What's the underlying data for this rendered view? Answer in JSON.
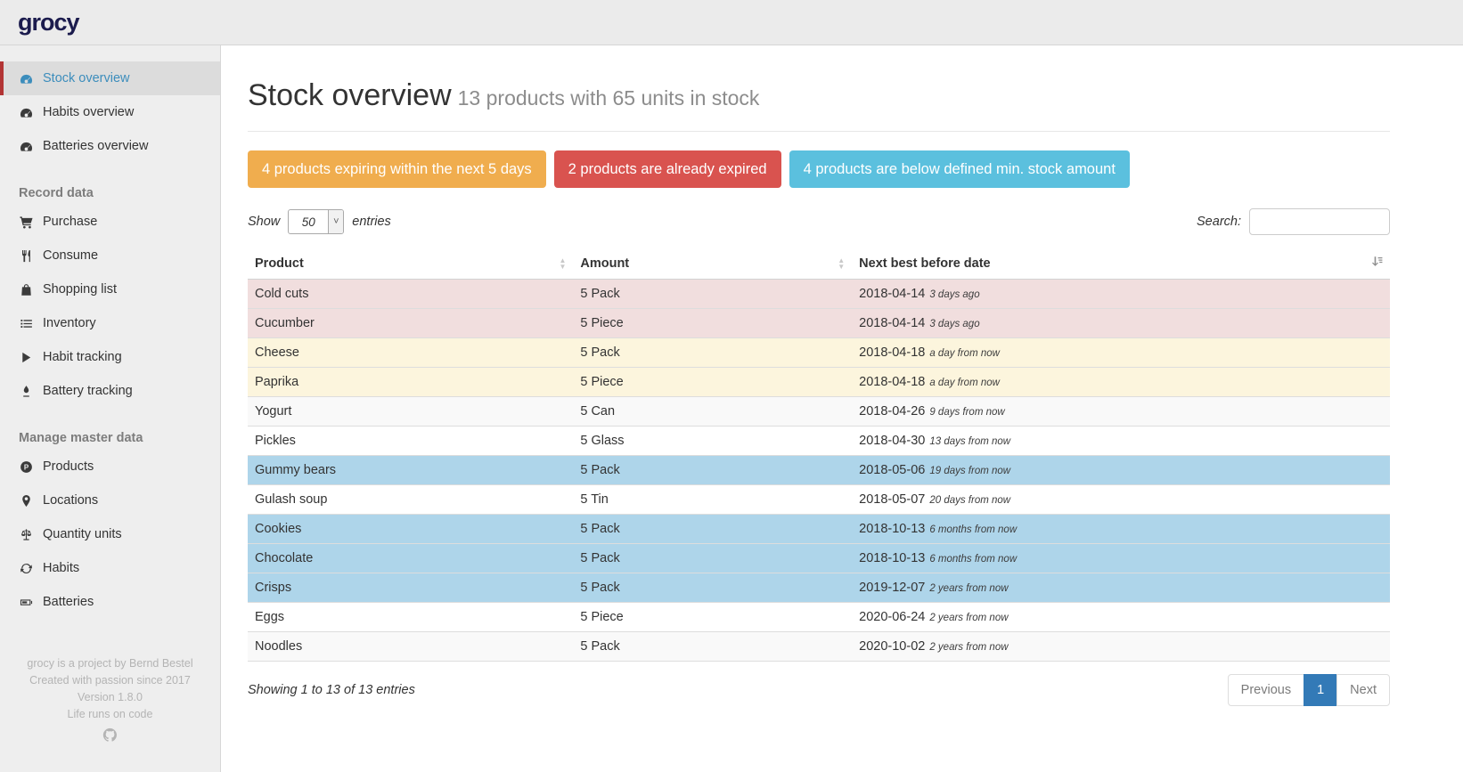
{
  "app": {
    "logo_text": "grocy"
  },
  "sidebar": {
    "groups": [
      {
        "header": null,
        "items": [
          {
            "label": "Stock overview",
            "icon": "tachometer",
            "active": true
          },
          {
            "label": "Habits overview",
            "icon": "tachometer",
            "active": false
          },
          {
            "label": "Batteries overview",
            "icon": "tachometer",
            "active": false
          }
        ]
      },
      {
        "header": "Record data",
        "items": [
          {
            "label": "Purchase",
            "icon": "shopping-cart",
            "active": false
          },
          {
            "label": "Consume",
            "icon": "utensils",
            "active": false
          },
          {
            "label": "Shopping list",
            "icon": "shopping-bag",
            "active": false
          },
          {
            "label": "Inventory",
            "icon": "list",
            "active": false
          },
          {
            "label": "Habit tracking",
            "icon": "play",
            "active": false
          },
          {
            "label": "Battery tracking",
            "icon": "pen",
            "active": false
          }
        ]
      },
      {
        "header": "Manage master data",
        "items": [
          {
            "label": "Products",
            "icon": "product-circle",
            "active": false
          },
          {
            "label": "Locations",
            "icon": "map-marker",
            "active": false
          },
          {
            "label": "Quantity units",
            "icon": "balance-scale",
            "active": false
          },
          {
            "label": "Habits",
            "icon": "refresh",
            "active": false
          },
          {
            "label": "Batteries",
            "icon": "battery",
            "active": false
          }
        ]
      }
    ],
    "footer_lines": [
      "grocy is a project by Bernd Bestel",
      "Created with passion since 2017",
      "Version 1.8.0",
      "Life runs on code"
    ]
  },
  "page": {
    "title": "Stock overview",
    "subtitle": "13 products with 65 units in stock"
  },
  "alerts": [
    {
      "label": "4 products expiring within the next 5 days",
      "color": "#f0ad4e"
    },
    {
      "label": "2 products are already expired",
      "color": "#d9534f"
    },
    {
      "label": "4 products are below defined min. stock amount",
      "color": "#5bc0de"
    }
  ],
  "controls": {
    "show_label": "Show",
    "page_size": "50",
    "entries_label": "entries",
    "search_label": "Search:",
    "search_value": ""
  },
  "table": {
    "columns": [
      "Product",
      "Amount",
      "Next best before date"
    ],
    "rows": [
      {
        "product": "Cold cuts",
        "amount": "5 Pack",
        "date": "2018-04-14",
        "relative": "3 days ago",
        "status": "expired"
      },
      {
        "product": "Cucumber",
        "amount": "5 Piece",
        "date": "2018-04-14",
        "relative": "3 days ago",
        "status": "expired"
      },
      {
        "product": "Cheese",
        "amount": "5 Pack",
        "date": "2018-04-18",
        "relative": "a day from now",
        "status": "expiring-soon"
      },
      {
        "product": "Paprika",
        "amount": "5 Piece",
        "date": "2018-04-18",
        "relative": "a day from now",
        "status": "expiring-soon"
      },
      {
        "product": "Yogurt",
        "amount": "5 Can",
        "date": "2018-04-26",
        "relative": "9 days from now",
        "status": "none"
      },
      {
        "product": "Pickles",
        "amount": "5 Glass",
        "date": "2018-04-30",
        "relative": "13 days from now",
        "status": "none"
      },
      {
        "product": "Gummy bears",
        "amount": "5 Pack",
        "date": "2018-05-06",
        "relative": "19 days from now",
        "status": "below-min-stock"
      },
      {
        "product": "Gulash soup",
        "amount": "5 Tin",
        "date": "2018-05-07",
        "relative": "20 days from now",
        "status": "none"
      },
      {
        "product": "Cookies",
        "amount": "5 Pack",
        "date": "2018-10-13",
        "relative": "6 months from now",
        "status": "below-min-stock"
      },
      {
        "product": "Chocolate",
        "amount": "5 Pack",
        "date": "2018-10-13",
        "relative": "6 months from now",
        "status": "below-min-stock"
      },
      {
        "product": "Crisps",
        "amount": "5 Pack",
        "date": "2019-12-07",
        "relative": "2 years from now",
        "status": "below-min-stock"
      },
      {
        "product": "Eggs",
        "amount": "5 Piece",
        "date": "2020-06-24",
        "relative": "2 years from now",
        "status": "none"
      },
      {
        "product": "Noodles",
        "amount": "5 Pack",
        "date": "2020-10-02",
        "relative": "2 years from now",
        "status": "none"
      }
    ]
  },
  "status_colors": {
    "expired": "#f1dede",
    "expiring-soon": "#fcf5dd",
    "below-min-stock": "#aed5ea",
    "stripe_odd": "#f9f9f9",
    "stripe_even": "#ffffff"
  },
  "table_footer": {
    "info": "Showing 1 to 13 of 13 entries",
    "pagination": {
      "previous_label": "Previous",
      "current_page": "1",
      "next_label": "Next"
    }
  }
}
